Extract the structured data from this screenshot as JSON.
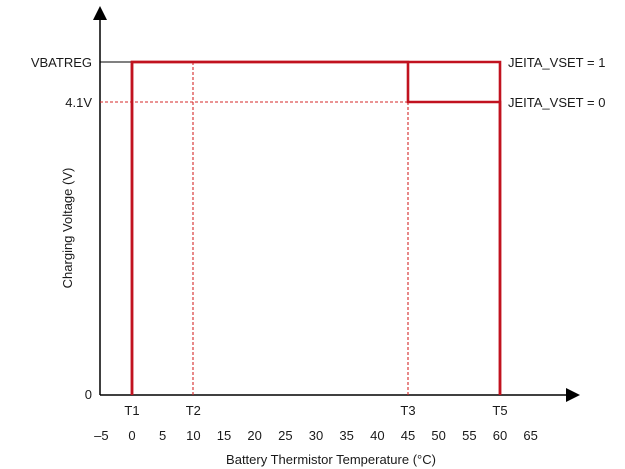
{
  "chart_data": {
    "type": "line",
    "title": "",
    "xlabel": "Battery Thermistor Temperature (°C)",
    "ylabel": "Charging Voltage (V)",
    "x_ticks": [
      "–5",
      "0",
      "5",
      "10",
      "15",
      "20",
      "25",
      "30",
      "35",
      "40",
      "45",
      "50",
      "55",
      "60",
      "65"
    ],
    "x_tick_values": [
      -5,
      0,
      5,
      10,
      15,
      20,
      25,
      30,
      35,
      40,
      45,
      50,
      55,
      60,
      65
    ],
    "threshold_labels": [
      {
        "label": "T1",
        "x": 0
      },
      {
        "label": "T2",
        "x": 10
      },
      {
        "label": "T3",
        "x": 45
      },
      {
        "label": "T5",
        "x": 60
      }
    ],
    "y_levels": [
      {
        "label": "VBATREG",
        "value": "VBATREG"
      },
      {
        "label": "4.1V",
        "value": 4.1
      },
      {
        "label": "0",
        "value": 0
      }
    ],
    "series": [
      {
        "name": "JEITA_VSET = 1",
        "x": [
          0,
          0,
          60,
          60
        ],
        "y": [
          "0",
          "VBATREG",
          "VBATREG",
          "0"
        ]
      },
      {
        "name": "JEITA_VSET = 0",
        "x": [
          0,
          0,
          45,
          45,
          60,
          60
        ],
        "y": [
          "0",
          "VBATREG",
          "VBATREG",
          "4.1V",
          "4.1V",
          "0"
        ]
      }
    ],
    "series_labels": [
      "JEITA_VSET = 1",
      "JEITA_VSET = 0"
    ],
    "colors": {
      "curve": "#c1121f",
      "dashed": "#d62828",
      "axis": "#000000"
    },
    "grid": false
  }
}
